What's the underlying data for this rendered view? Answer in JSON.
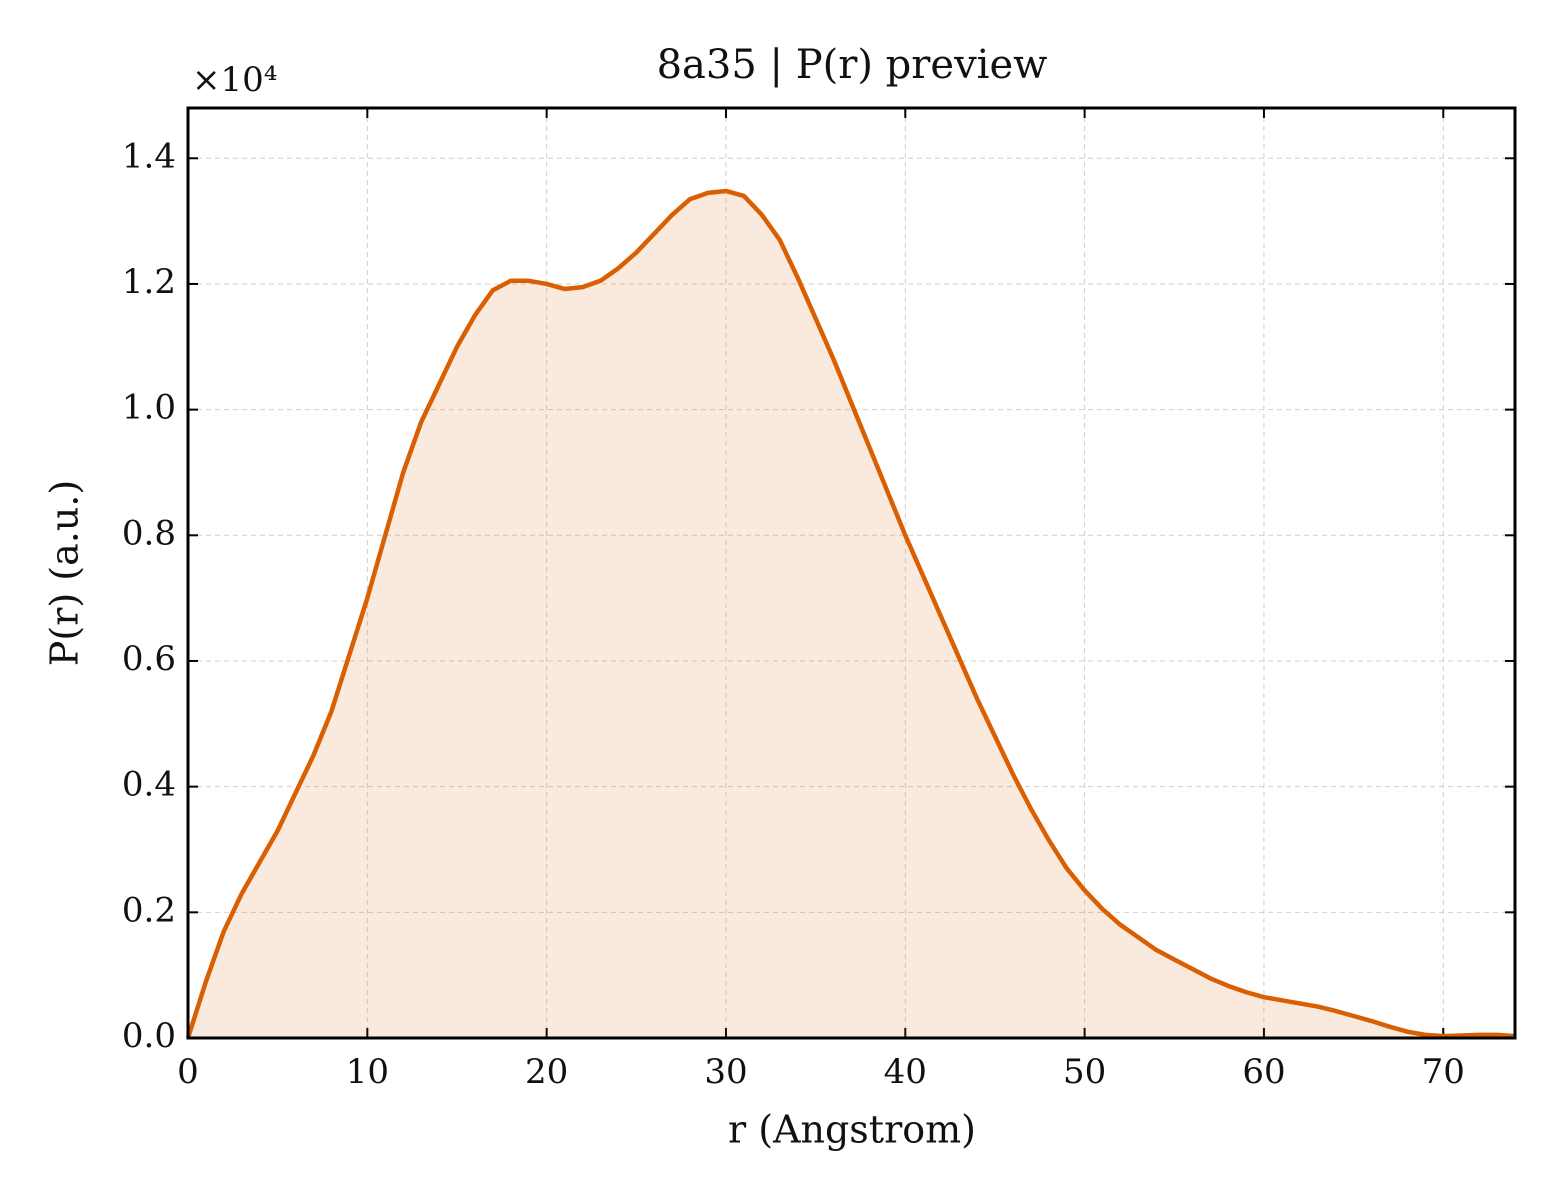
{
  "chart_data": {
    "type": "line",
    "title": "8a35 | P(r) preview",
    "xlabel": "r (Angstrom)",
    "ylabel": "P(r) (a.u.)",
    "y_offset_label": "×10⁴",
    "color": "#d95f02",
    "fill": true,
    "grid": true,
    "x": [
      0,
      1,
      2,
      3,
      4,
      5,
      6,
      7,
      8,
      9,
      10,
      11,
      12,
      13,
      14,
      15,
      16,
      17,
      18,
      19,
      20,
      21,
      22,
      23,
      24,
      25,
      26,
      27,
      28,
      29,
      30,
      31,
      32,
      33,
      34,
      35,
      36,
      37,
      38,
      39,
      40,
      41,
      42,
      43,
      44,
      45,
      46,
      47,
      48,
      49,
      50,
      51,
      52,
      53,
      54,
      55,
      56,
      57,
      58,
      59,
      60,
      61,
      62,
      63,
      64,
      65,
      66,
      67,
      68,
      69,
      70,
      71,
      72,
      73,
      74
    ],
    "values": [
      0,
      0.09,
      0.17,
      0.23,
      0.28,
      0.33,
      0.39,
      0.45,
      0.52,
      0.61,
      0.7,
      0.8,
      0.9,
      0.98,
      1.04,
      1.1,
      1.15,
      1.19,
      1.205,
      1.205,
      1.2,
      1.192,
      1.195,
      1.205,
      1.225,
      1.25,
      1.28,
      1.31,
      1.335,
      1.345,
      1.348,
      1.34,
      1.31,
      1.27,
      1.21,
      1.145,
      1.08,
      1.01,
      0.94,
      0.87,
      0.8,
      0.735,
      0.67,
      0.605,
      0.54,
      0.48,
      0.42,
      0.365,
      0.315,
      0.27,
      0.235,
      0.205,
      0.18,
      0.16,
      0.14,
      0.125,
      0.11,
      0.095,
      0.083,
      0.073,
      0.065,
      0.06,
      0.055,
      0.05,
      0.043,
      0.035,
      0.027,
      0.018,
      0.01,
      0.005,
      0.003,
      0.004,
      0.005,
      0.005,
      0.003
    ],
    "xlim": [
      0,
      74
    ],
    "ylim": [
      0,
      1.48
    ],
    "xticks": [
      0,
      10,
      20,
      30,
      40,
      50,
      60,
      70
    ],
    "yticks": [
      {
        "value": 0,
        "label": "0.0"
      },
      0.2,
      0.4,
      0.6,
      0.8,
      {
        "value": 1,
        "label": "1.0"
      },
      1.2,
      1.4
    ]
  }
}
